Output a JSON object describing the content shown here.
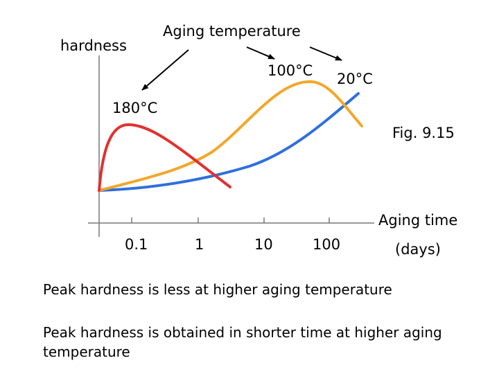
{
  "figure": {
    "y_label": "hardness",
    "title": "Aging temperature",
    "fig_label": "Fig. 9.15",
    "x_label_line1": "Aging time",
    "x_label_line2": "(days)",
    "temperatures": [
      "180°C",
      "100°C",
      "20°C"
    ],
    "curve_colors": {
      "180°C": "#e23030",
      "100°C": "#f2a72b",
      "20°C": "#2f6fde"
    },
    "x_ticks": [
      "0.1",
      "1",
      "10",
      "100"
    ],
    "x_scale": "log"
  },
  "notes": [
    "Peak hardness is less at higher aging temperature",
    "Peak hardness is obtained in shorter time at higher aging temperature"
  ]
}
